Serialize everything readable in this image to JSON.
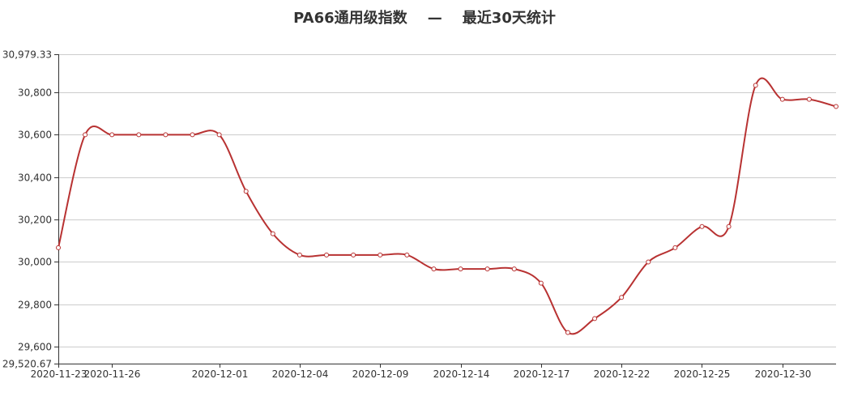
{
  "chart_data": {
    "type": "line",
    "title": "PA66通用级指数    —    最近30天统计",
    "xlabel": "",
    "ylabel": "",
    "ylim": [
      29520.67,
      30979.33
    ],
    "y_ticks": [
      {
        "value": 30979.33,
        "label": "30,979.33"
      },
      {
        "value": 30800,
        "label": "30,800"
      },
      {
        "value": 30600,
        "label": "30,600"
      },
      {
        "value": 30400,
        "label": "30,400"
      },
      {
        "value": 30200,
        "label": "30,200"
      },
      {
        "value": 30000,
        "label": "30,000"
      },
      {
        "value": 29800,
        "label": "29,800"
      },
      {
        "value": 29600,
        "label": "29,600"
      },
      {
        "value": 29520.67,
        "label": "29,520.67"
      }
    ],
    "x_tick_labels": [
      {
        "index": 0,
        "label": "2020-11-23"
      },
      {
        "index": 2,
        "label": "2020-11-26"
      },
      {
        "index": 6,
        "label": "2020-12-01"
      },
      {
        "index": 9,
        "label": "2020-12-04"
      },
      {
        "index": 12,
        "label": "2020-12-09"
      },
      {
        "index": 15,
        "label": "2020-12-14"
      },
      {
        "index": 18,
        "label": "2020-12-17"
      },
      {
        "index": 21,
        "label": "2020-12-22"
      },
      {
        "index": 24,
        "label": "2020-12-25"
      },
      {
        "index": 27,
        "label": "2020-12-30"
      }
    ],
    "grid": true,
    "color": "#b83232",
    "series": [
      {
        "values": [
          30067,
          30600,
          30600,
          30600,
          30600,
          30600,
          30600,
          30333,
          30133,
          30033,
          30033,
          30033,
          30033,
          30033,
          29967,
          29967,
          29967,
          29967,
          29900,
          29667,
          29733,
          29833,
          30000,
          30067,
          30167,
          30167,
          30833,
          30767,
          30767,
          30733
        ]
      }
    ]
  }
}
